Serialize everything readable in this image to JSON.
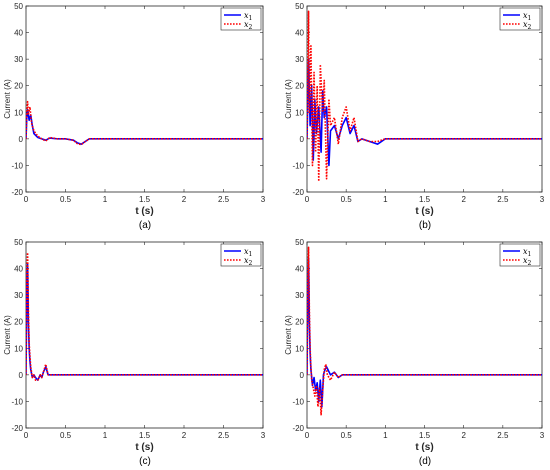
{
  "figure": {
    "panels": [
      "(a)",
      "(b)",
      "(c)",
      "(d)"
    ]
  },
  "colors": {
    "x1": "#0000ff",
    "x2": "#ff0000",
    "axis": "#262626",
    "background": "#ffffff"
  },
  "chart_data": [
    {
      "type": "line",
      "panel_label": "(a)",
      "xlabel": "t (s)",
      "ylabel": "Current (A)",
      "xlim": [
        0,
        3
      ],
      "ylim": [
        -20,
        50
      ],
      "xticks": [
        "0",
        "0.5",
        "1",
        "1.5",
        "2",
        "2.5",
        "3"
      ],
      "yticks": [
        "-20",
        "-10",
        "0",
        "10",
        "20",
        "30",
        "40",
        "50"
      ],
      "grid": false,
      "legend": "top-right",
      "series": [
        {
          "name": "x_1",
          "legend_base": "x",
          "legend_sub": "1",
          "color": "#0000ff",
          "style": "solid",
          "x": [
            0,
            0.01,
            0.02,
            0.04,
            0.06,
            0.08,
            0.1,
            0.15,
            0.2,
            0.25,
            0.3,
            0.4,
            0.5,
            0.6,
            0.65,
            0.7,
            0.75,
            0.8,
            0.9,
            1.0,
            1.5,
            2.0,
            2.5,
            3.0
          ],
          "y": [
            0,
            8,
            11,
            7,
            9,
            5,
            2,
            0.5,
            0,
            -0.5,
            0.3,
            0,
            0,
            -0.5,
            -1.5,
            -2,
            -1,
            0,
            0,
            0,
            0,
            0,
            0,
            0
          ]
        },
        {
          "name": "x_2",
          "legend_base": "x",
          "legend_sub": "2",
          "color": "#ff0000",
          "style": "dotted",
          "x": [
            0,
            0.01,
            0.02,
            0.03,
            0.05,
            0.07,
            0.1,
            0.15,
            0.2,
            0.25,
            0.3,
            0.4,
            0.5,
            0.6,
            0.65,
            0.7,
            0.75,
            0.8,
            0.9,
            1.0,
            1.5,
            2.0,
            2.5,
            3.0
          ],
          "y": [
            0,
            10,
            14,
            9,
            12,
            6,
            3,
            1,
            0,
            -0.8,
            0.5,
            0,
            0,
            -0.5,
            -1.8,
            -2.2,
            -1,
            0,
            0,
            0,
            0,
            0,
            0,
            0
          ]
        }
      ]
    },
    {
      "type": "line",
      "panel_label": "(b)",
      "xlabel": "t (s)",
      "ylabel": "Current (A)",
      "xlim": [
        0,
        3
      ],
      "ylim": [
        -20,
        50
      ],
      "xticks": [
        "0",
        "0.5",
        "1",
        "1.5",
        "2",
        "2.5",
        "3"
      ],
      "yticks": [
        "-20",
        "-10",
        "0",
        "10",
        "20",
        "30",
        "40",
        "50"
      ],
      "grid": false,
      "legend": "top-right",
      "series": [
        {
          "name": "x_1",
          "legend_base": "x",
          "legend_sub": "1",
          "color": "#0000ff",
          "style": "solid",
          "x": [
            0,
            0.02,
            0.04,
            0.06,
            0.08,
            0.1,
            0.12,
            0.15,
            0.18,
            0.2,
            0.22,
            0.25,
            0.28,
            0.3,
            0.35,
            0.4,
            0.45,
            0.5,
            0.55,
            0.6,
            0.65,
            0.7,
            0.8,
            0.9,
            1.0,
            3.0
          ],
          "y": [
            0,
            30,
            5,
            20,
            -8,
            15,
            2,
            12,
            -5,
            18,
            8,
            12,
            -10,
            3,
            5,
            0,
            5,
            8,
            2,
            5,
            -1,
            0,
            -1,
            -2,
            0,
            0
          ]
        },
        {
          "name": "x_2",
          "legend_base": "x",
          "legend_sub": "2",
          "color": "#ff0000",
          "style": "dotted",
          "x": [
            0,
            0.02,
            0.03,
            0.05,
            0.07,
            0.09,
            0.11,
            0.13,
            0.15,
            0.17,
            0.2,
            0.22,
            0.25,
            0.28,
            0.3,
            0.35,
            0.4,
            0.45,
            0.5,
            0.55,
            0.6,
            0.65,
            0.7,
            0.8,
            0.9,
            1.0,
            3.0
          ],
          "y": [
            0,
            48,
            10,
            35,
            -10,
            25,
            -5,
            20,
            -16,
            28,
            10,
            22,
            -15,
            15,
            5,
            8,
            -2,
            8,
            12,
            3,
            8,
            -1,
            0,
            -1,
            -1,
            0,
            0
          ]
        }
      ]
    },
    {
      "type": "line",
      "panel_label": "(c)",
      "xlabel": "t (s)",
      "ylabel": "Current (A)",
      "xlim": [
        0,
        3
      ],
      "ylim": [
        -20,
        50
      ],
      "xticks": [
        "0",
        "0.5",
        "1",
        "1.5",
        "2",
        "2.5",
        "3"
      ],
      "yticks": [
        "-20",
        "-10",
        "0",
        "10",
        "20",
        "30",
        "40",
        "50"
      ],
      "grid": false,
      "legend": "top-right",
      "series": [
        {
          "name": "x_1",
          "legend_base": "x",
          "legend_sub": "1",
          "color": "#0000ff",
          "style": "solid",
          "x": [
            0,
            0.01,
            0.02,
            0.03,
            0.04,
            0.05,
            0.06,
            0.08,
            0.1,
            0.12,
            0.15,
            0.18,
            0.2,
            0.22,
            0.25,
            0.28,
            0.3,
            0.35,
            0.4,
            0.5,
            1.0,
            3.0
          ],
          "y": [
            0,
            30,
            42,
            20,
            10,
            5,
            2,
            -1,
            0,
            -1,
            -2,
            0,
            -1,
            1,
            3,
            0,
            0,
            0,
            0,
            0,
            0,
            0
          ]
        },
        {
          "name": "x_2",
          "legend_base": "x",
          "legend_sub": "2",
          "color": "#ff0000",
          "style": "dotted",
          "x": [
            0,
            0.01,
            0.02,
            0.03,
            0.04,
            0.05,
            0.06,
            0.08,
            0.1,
            0.12,
            0.15,
            0.18,
            0.2,
            0.22,
            0.25,
            0.28,
            0.3,
            0.35,
            0.4,
            0.5,
            1.0,
            3.0
          ],
          "y": [
            0,
            35,
            46,
            25,
            12,
            7,
            3,
            -1,
            0,
            -2,
            -2,
            0,
            -1,
            1,
            4,
            0,
            0,
            0,
            0,
            0,
            0,
            0
          ]
        }
      ]
    },
    {
      "type": "line",
      "panel_label": "(d)",
      "xlabel": "t (s)",
      "ylabel": "Current (A)",
      "xlim": [
        0,
        3
      ],
      "ylim": [
        -20,
        50
      ],
      "xticks": [
        "0",
        "0.5",
        "1",
        "1.5",
        "2",
        "2.5",
        "3"
      ],
      "yticks": [
        "-20",
        "-10",
        "0",
        "10",
        "20",
        "30",
        "40",
        "50"
      ],
      "grid": false,
      "legend": "top-right",
      "series": [
        {
          "name": "x_1",
          "legend_base": "x",
          "legend_sub": "1",
          "color": "#0000ff",
          "style": "solid",
          "x": [
            0,
            0.01,
            0.02,
            0.03,
            0.04,
            0.05,
            0.07,
            0.09,
            0.11,
            0.13,
            0.15,
            0.17,
            0.19,
            0.21,
            0.23,
            0.25,
            0.3,
            0.35,
            0.4,
            0.45,
            0.5,
            1.0,
            3.0
          ],
          "y": [
            0,
            30,
            44,
            20,
            8,
            2,
            -4,
            -1,
            -6,
            -3,
            -10,
            -2,
            -12,
            0,
            2,
            3,
            0,
            1,
            -1,
            0,
            0,
            0,
            0
          ]
        },
        {
          "name": "x_2",
          "legend_base": "x",
          "legend_sub": "2",
          "color": "#ff0000",
          "style": "dotted",
          "x": [
            0,
            0.01,
            0.02,
            0.03,
            0.04,
            0.05,
            0.06,
            0.08,
            0.1,
            0.12,
            0.14,
            0.16,
            0.18,
            0.2,
            0.22,
            0.24,
            0.26,
            0.3,
            0.35,
            0.4,
            0.45,
            0.5,
            1.0,
            3.0
          ],
          "y": [
            0,
            35,
            48,
            25,
            10,
            3,
            -2,
            -5,
            -8,
            -4,
            -12,
            -5,
            -15,
            -6,
            2,
            4,
            0,
            -2,
            1,
            -1,
            0,
            0,
            0,
            0
          ]
        }
      ]
    }
  ]
}
